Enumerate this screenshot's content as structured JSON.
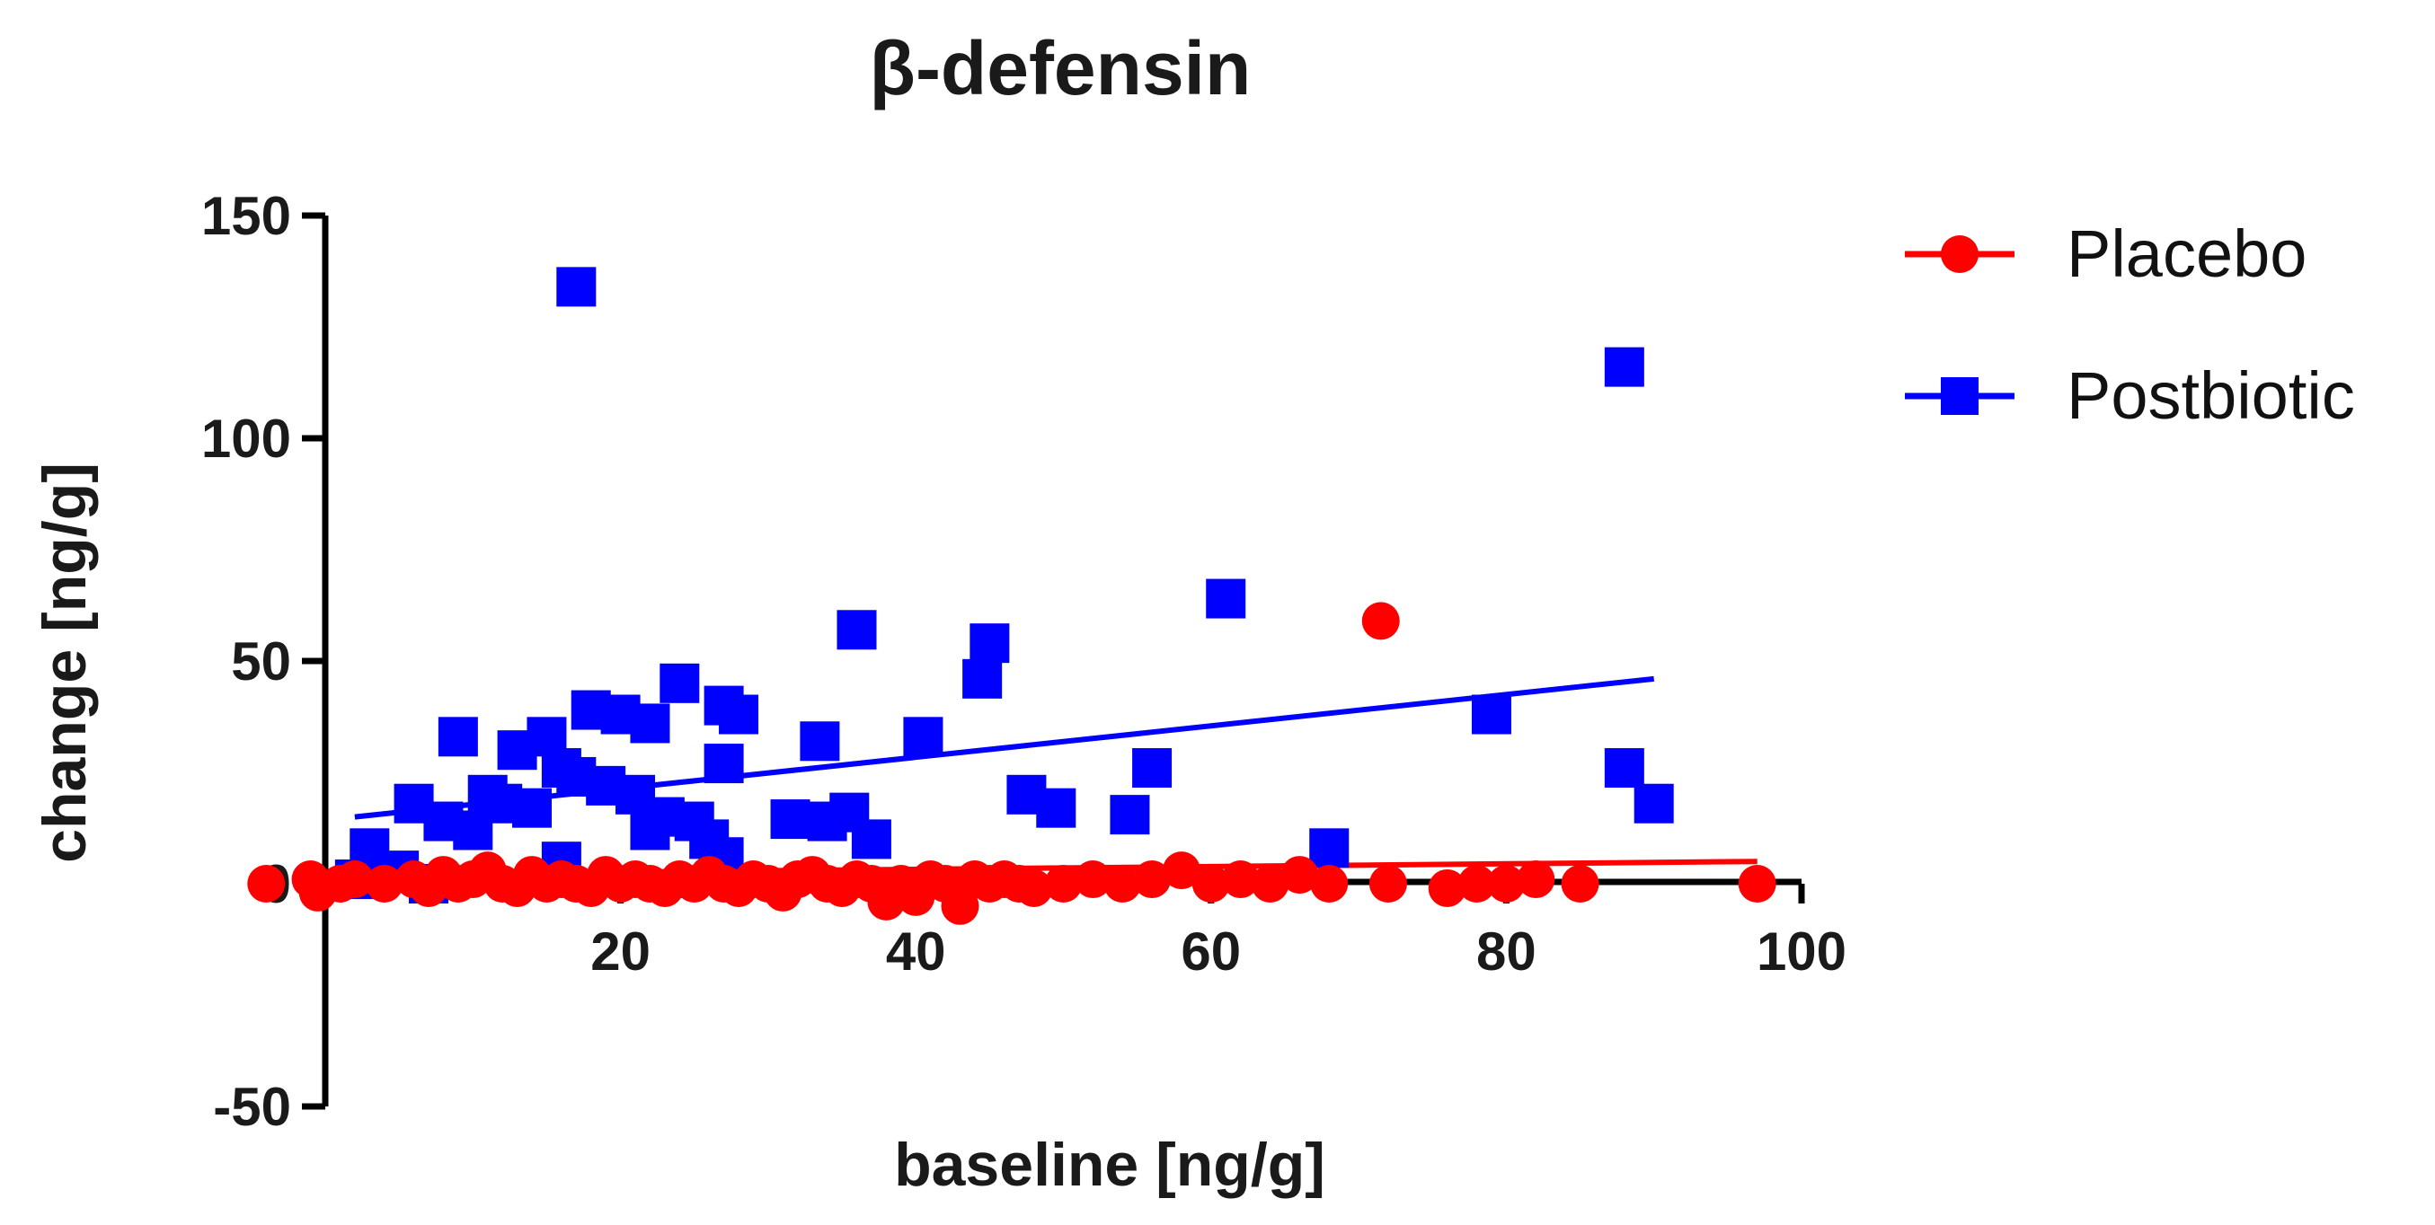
{
  "chart_data": {
    "type": "scatter",
    "title": "β-defensin",
    "xlabel": "baseline [ng/g]",
    "ylabel": "change [ng/g]",
    "xlim": [
      0,
      100
    ],
    "ylim": [
      -50,
      150
    ],
    "x_ticks": [
      20,
      40,
      60,
      80,
      100
    ],
    "y_ticks": [
      -50,
      0,
      50,
      100,
      150
    ],
    "x_tick_labels": [
      "20",
      "40",
      "60",
      "80",
      "100"
    ],
    "y_tick_labels": [
      "-50",
      "0",
      "50",
      "100",
      "150"
    ],
    "grid": false,
    "legend_position": "top-right",
    "series": [
      {
        "name": "Placebo",
        "color": "#ff0000",
        "marker": "circle",
        "points": [
          [
            -4,
            0
          ],
          [
            -1,
            1
          ],
          [
            -0.5,
            -2
          ],
          [
            1,
            0
          ],
          [
            2,
            1
          ],
          [
            4,
            0
          ],
          [
            6,
            1
          ],
          [
            7,
            -1
          ],
          [
            8,
            2
          ],
          [
            9,
            0
          ],
          [
            10,
            1
          ],
          [
            11,
            3
          ],
          [
            12,
            0
          ],
          [
            13,
            -1
          ],
          [
            14,
            2
          ],
          [
            15,
            0
          ],
          [
            16,
            1
          ],
          [
            17,
            0
          ],
          [
            18,
            -1
          ],
          [
            19,
            2
          ],
          [
            20,
            0
          ],
          [
            21,
            1
          ],
          [
            22,
            0
          ],
          [
            23,
            -1
          ],
          [
            24,
            1
          ],
          [
            25,
            0
          ],
          [
            26,
            2
          ],
          [
            27,
            0
          ],
          [
            28,
            -1
          ],
          [
            29,
            1
          ],
          [
            30,
            0
          ],
          [
            31,
            -2
          ],
          [
            32,
            1
          ],
          [
            33,
            2
          ],
          [
            34,
            0
          ],
          [
            35,
            -1
          ],
          [
            36,
            1
          ],
          [
            37,
            0
          ],
          [
            38,
            -4
          ],
          [
            39,
            0
          ],
          [
            40,
            -3
          ],
          [
            41,
            1
          ],
          [
            42,
            0
          ],
          [
            43,
            -5
          ],
          [
            44,
            1
          ],
          [
            45,
            0
          ],
          [
            46,
            1
          ],
          [
            47,
            0
          ],
          [
            48,
            -1
          ],
          [
            50,
            0
          ],
          [
            52,
            1
          ],
          [
            54,
            0
          ],
          [
            56,
            1
          ],
          [
            58,
            3
          ],
          [
            60,
            0
          ],
          [
            62,
            1
          ],
          [
            64,
            0
          ],
          [
            66,
            2
          ],
          [
            68,
            0
          ],
          [
            72,
            0
          ],
          [
            76,
            -1
          ],
          [
            78,
            0
          ],
          [
            80,
            0
          ],
          [
            82,
            1
          ],
          [
            85,
            0
          ],
          [
            97,
            0
          ],
          [
            71.5,
            59
          ]
        ],
        "fit_line": [
          [
            0,
            2
          ],
          [
            97,
            5
          ]
        ]
      },
      {
        "name": "Postbiotic",
        "color": "#0000ff",
        "marker": "square",
        "points": [
          [
            17,
            134
          ],
          [
            88,
            116
          ],
          [
            61,
            64
          ],
          [
            36,
            57
          ],
          [
            45,
            54
          ],
          [
            44.5,
            46
          ],
          [
            24,
            45
          ],
          [
            18,
            39
          ],
          [
            20,
            38
          ],
          [
            22,
            36
          ],
          [
            27,
            40
          ],
          [
            28,
            38
          ],
          [
            9,
            33
          ],
          [
            15,
            33
          ],
          [
            13,
            30
          ],
          [
            33.5,
            32
          ],
          [
            40.5,
            33
          ],
          [
            16,
            26
          ],
          [
            17,
            24
          ],
          [
            19,
            22
          ],
          [
            21,
            20
          ],
          [
            27,
            27
          ],
          [
            56,
            26
          ],
          [
            79,
            38
          ],
          [
            88,
            26
          ],
          [
            90,
            18
          ],
          [
            6,
            18
          ],
          [
            11,
            20
          ],
          [
            12,
            18
          ],
          [
            8,
            14
          ],
          [
            10,
            12
          ],
          [
            14,
            17
          ],
          [
            23,
            15
          ],
          [
            25,
            14
          ],
          [
            26,
            10
          ],
          [
            31.5,
            14.5
          ],
          [
            35.5,
            16
          ],
          [
            34,
            14
          ],
          [
            37,
            10
          ],
          [
            47.5,
            20
          ],
          [
            49.5,
            17
          ],
          [
            54.5,
            15.5
          ],
          [
            68,
            8
          ],
          [
            3,
            8
          ],
          [
            5,
            3
          ],
          [
            2,
            1
          ],
          [
            7,
            0
          ],
          [
            16,
            5
          ],
          [
            22,
            12
          ],
          [
            27,
            6
          ]
        ],
        "fit_line": [
          [
            2,
            15
          ],
          [
            90,
            46
          ]
        ]
      }
    ]
  }
}
